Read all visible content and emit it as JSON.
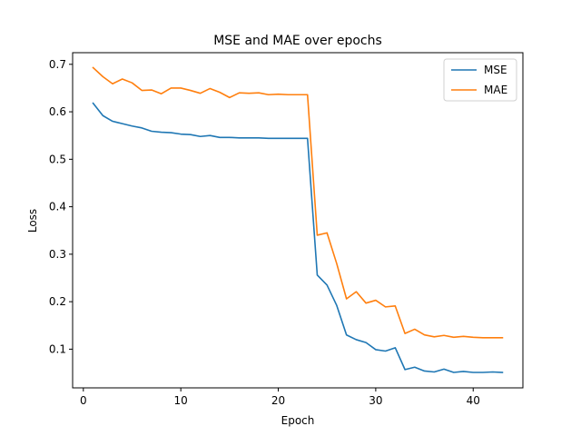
{
  "chart_data": {
    "type": "line",
    "title": "MSE and MAE over epochs",
    "xlabel": "Epoch",
    "ylabel": "Loss",
    "xlim": [
      -1.1,
      45.1
    ],
    "ylim": [
      0.0185,
      0.7245
    ],
    "xticks": [
      0,
      10,
      20,
      30,
      40
    ],
    "yticks": [
      0.1,
      0.2,
      0.3,
      0.4,
      0.5,
      0.6,
      0.7
    ],
    "ytick_labels": [
      "0.1",
      "0.2",
      "0.3",
      "0.4",
      "0.5",
      "0.6",
      "0.7"
    ],
    "grid": false,
    "legend_position": "top-right",
    "x": [
      1,
      2,
      3,
      4,
      5,
      6,
      7,
      8,
      9,
      10,
      11,
      12,
      13,
      14,
      15,
      16,
      17,
      18,
      19,
      20,
      21,
      22,
      23,
      24,
      25,
      26,
      27,
      28,
      29,
      30,
      31,
      32,
      33,
      34,
      35,
      36,
      37,
      38,
      39,
      40,
      41,
      42,
      43
    ],
    "series": [
      {
        "name": "MSE",
        "color": "#1f77b4",
        "values": [
          0.618,
          0.592,
          0.58,
          0.575,
          0.57,
          0.566,
          0.559,
          0.557,
          0.556,
          0.553,
          0.552,
          0.548,
          0.55,
          0.546,
          0.546,
          0.545,
          0.545,
          0.545,
          0.544,
          0.544,
          0.544,
          0.544,
          0.544,
          0.256,
          0.235,
          0.192,
          0.13,
          0.12,
          0.114,
          0.099,
          0.096,
          0.103,
          0.057,
          0.062,
          0.054,
          0.052,
          0.058,
          0.051,
          0.053,
          0.051,
          0.051,
          0.052,
          0.051
        ]
      },
      {
        "name": "MAE",
        "color": "#ff7f0e",
        "values": [
          0.693,
          0.674,
          0.659,
          0.669,
          0.661,
          0.645,
          0.646,
          0.638,
          0.65,
          0.65,
          0.645,
          0.639,
          0.649,
          0.641,
          0.63,
          0.64,
          0.639,
          0.64,
          0.636,
          0.637,
          0.636,
          0.636,
          0.636,
          0.34,
          0.345,
          0.28,
          0.206,
          0.221,
          0.197,
          0.203,
          0.189,
          0.191,
          0.133,
          0.142,
          0.13,
          0.126,
          0.129,
          0.125,
          0.127,
          0.125,
          0.124,
          0.124,
          0.124
        ]
      }
    ]
  }
}
